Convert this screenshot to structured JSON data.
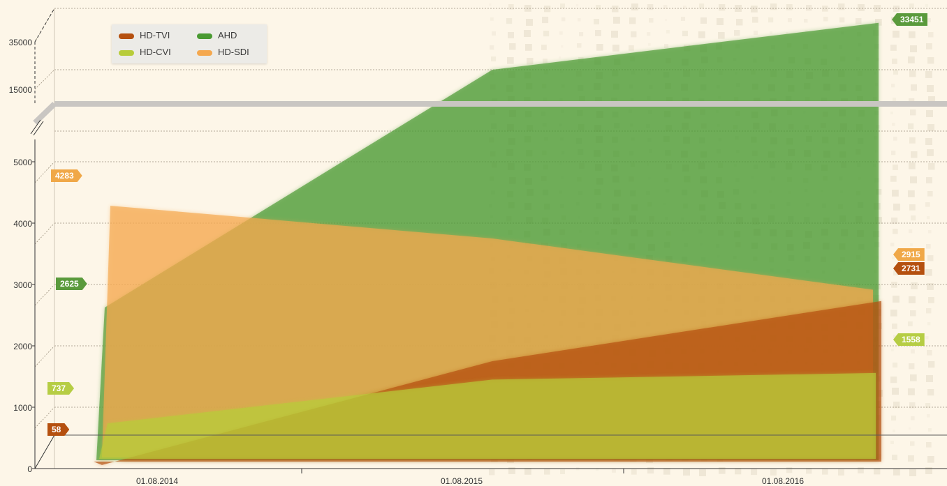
{
  "chart_data": {
    "type": "area",
    "x": [
      "01.08.2014",
      "01.08.2015",
      "01.08.2016"
    ],
    "y_ticks_lower": [
      "0",
      "1000",
      "2000",
      "3000",
      "4000",
      "5000"
    ],
    "y_ticks_upper": [
      "15000",
      "35000"
    ],
    "y_axis_break": true,
    "series": [
      {
        "name": "HD-TVI",
        "color": "#b5500f",
        "values": [
          58,
          1750,
          2731
        ]
      },
      {
        "name": "AHD",
        "color": "#4a9a32",
        "values": [
          2625,
          15000,
          33451
        ]
      },
      {
        "name": "HD-CVI",
        "color": "#b8cc3a",
        "values": [
          737,
          1450,
          1558
        ]
      },
      {
        "name": "HD-SDI",
        "color": "#f5a84e",
        "values": [
          4283,
          3750,
          2915
        ]
      }
    ],
    "end_labels": {
      "start": [
        {
          "series": "HD-SDI",
          "text": "4283"
        },
        {
          "series": "AHD",
          "text": "2625"
        },
        {
          "series": "HD-CVI",
          "text": "737"
        },
        {
          "series": "HD-TVI",
          "text": "58"
        }
      ],
      "end": [
        {
          "series": "AHD",
          "text": "33451"
        },
        {
          "series": "HD-SDI",
          "text": "2915"
        },
        {
          "series": "HD-TVI",
          "text": "2731"
        },
        {
          "series": "HD-CVI",
          "text": "1558"
        }
      ]
    },
    "legend": {
      "position": "top-left"
    },
    "grid": true
  },
  "legend": {
    "items": [
      {
        "label": "HD-TVI",
        "color": "#b5500f"
      },
      {
        "label": "AHD",
        "color": "#4a9a32"
      },
      {
        "label": "HD-CVI",
        "color": "#b8cc3a"
      },
      {
        "label": "HD-SDI",
        "color": "#f5a84e"
      }
    ]
  }
}
